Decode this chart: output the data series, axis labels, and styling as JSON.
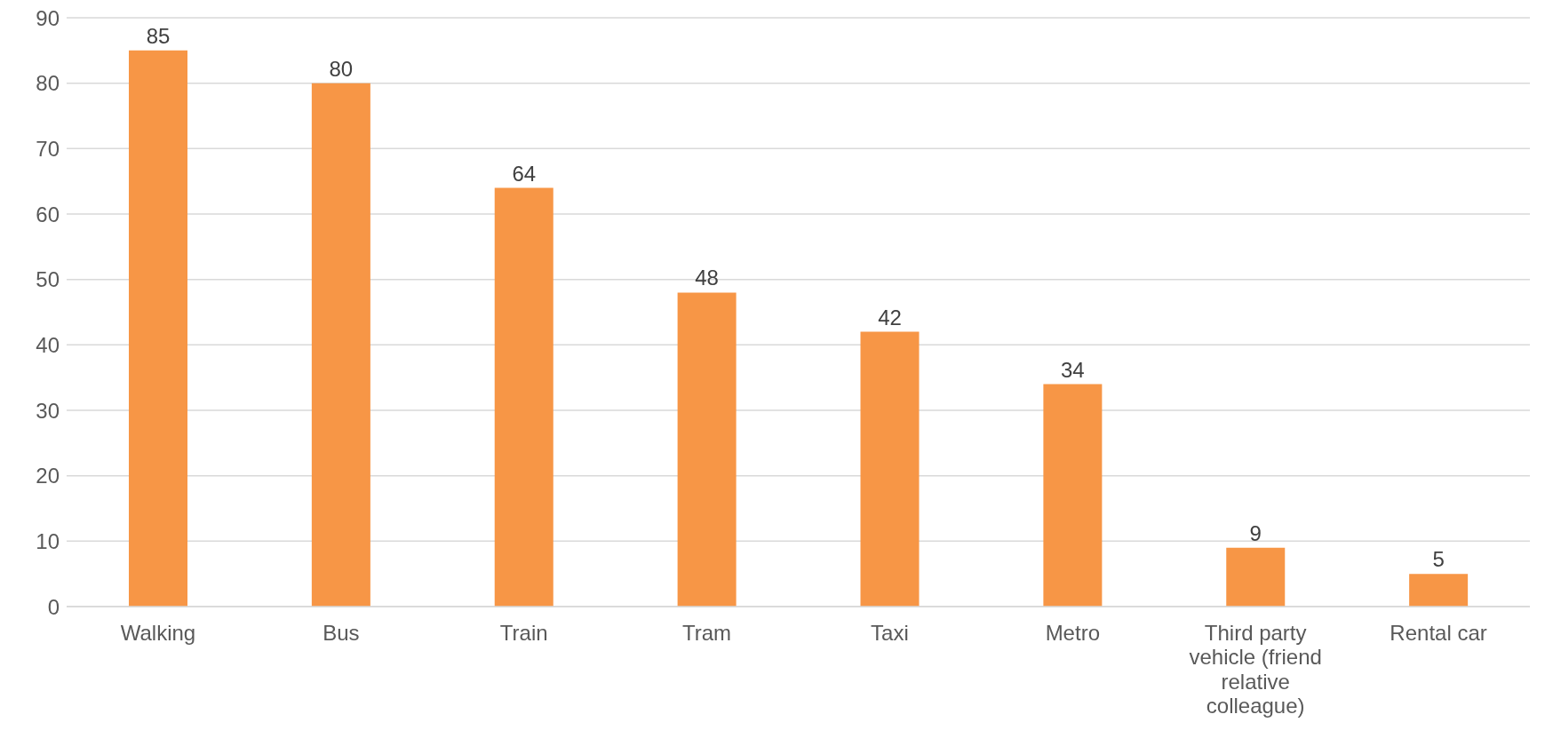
{
  "chart_data": {
    "type": "bar",
    "categories": [
      "Walking",
      "Bus",
      "Train",
      "Tram",
      "Taxi",
      "Metro",
      "Third party vehicle (friend relative colleague)",
      "Rental car"
    ],
    "values": [
      85,
      80,
      64,
      48,
      42,
      34,
      9,
      5
    ],
    "color": "#f79646",
    "ylim": [
      0,
      90
    ],
    "yticks": [
      0,
      10,
      20,
      30,
      40,
      50,
      60,
      70,
      80,
      90
    ],
    "grid": "y",
    "data_labels": true
  }
}
